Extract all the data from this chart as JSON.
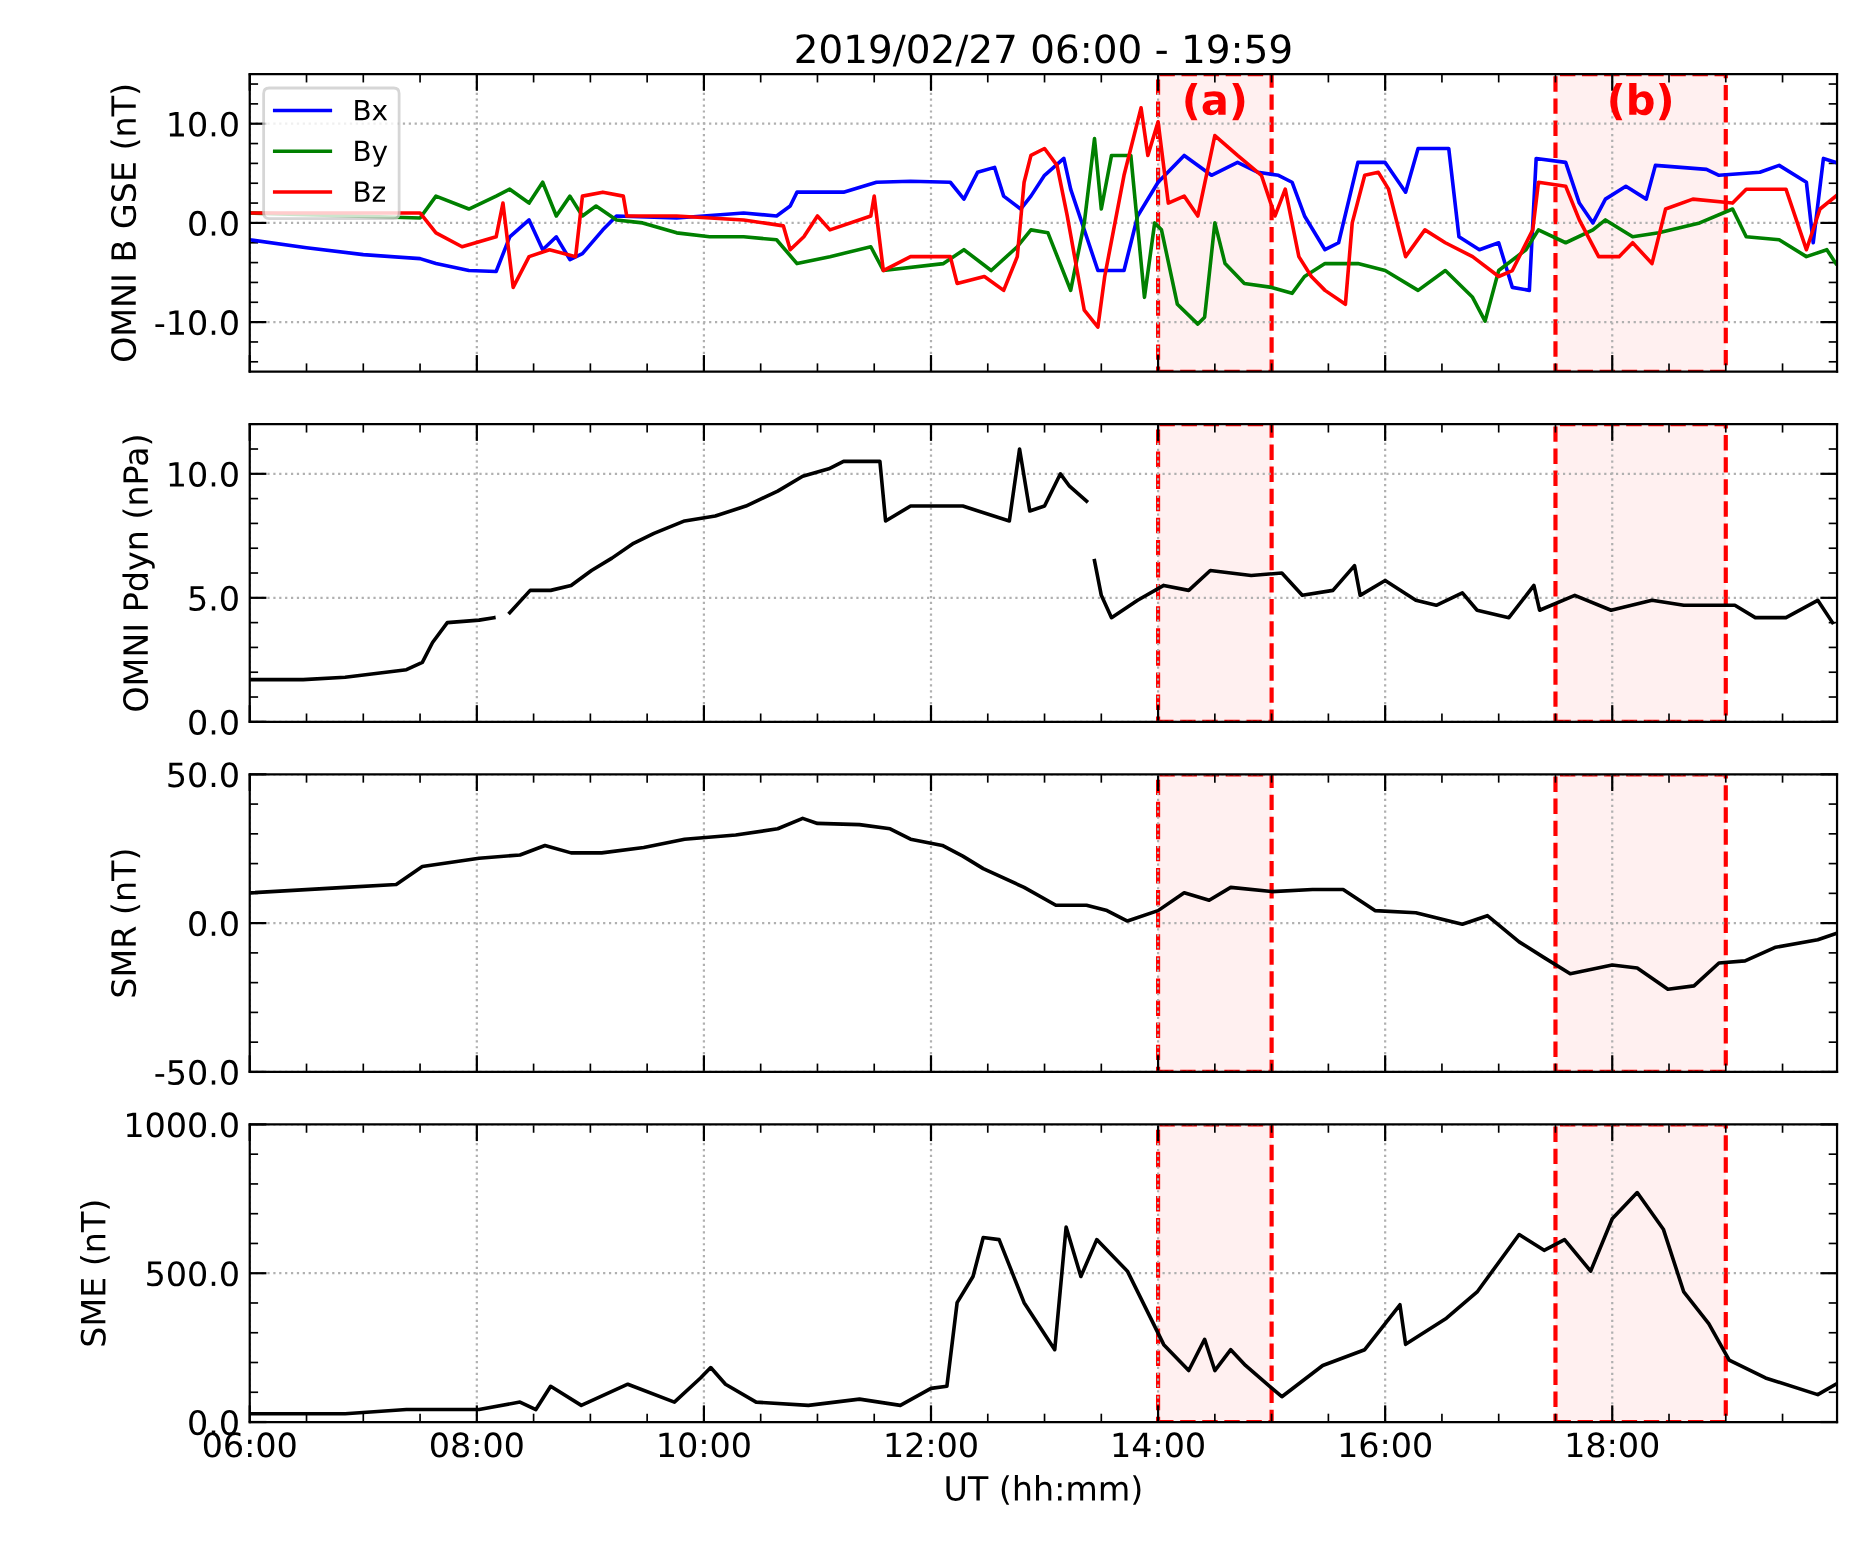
{
  "chart_data": [
    {
      "type": "line",
      "title": "2019/02/27 06:00 - 19:59",
      "ylabel": "OMNI B GSE (nT)",
      "xlim": [
        6,
        19.98
      ],
      "xticks": [
        {
          "value": 6,
          "label": null
        },
        {
          "value": 8,
          "label": null
        },
        {
          "value": 10,
          "label": null
        },
        {
          "value": 12,
          "label": null
        },
        {
          "value": 14,
          "label": null
        },
        {
          "value": 16,
          "label": null
        },
        {
          "value": 18,
          "label": null
        }
      ],
      "ylim": [
        -15,
        15
      ],
      "yticks": [
        {
          "value": -10,
          "label": "-10.0"
        },
        {
          "value": 0,
          "label": "0.0"
        },
        {
          "value": 10,
          "label": "10.0"
        }
      ],
      "tick_labels": "y",
      "grid": true,
      "legend": "top left",
      "marker": "none",
      "line_style": "solid",
      "series": [
        {
          "name": "Bx",
          "color": "#0000ff",
          "x": [
            6.0,
            6.5,
            7.0,
            7.5,
            7.64,
            7.93,
            8.17,
            8.29,
            8.46,
            8.58,
            8.7,
            8.82,
            8.93,
            9.11,
            9.23,
            9.76,
            10.35,
            10.64,
            10.76,
            10.82,
            11.23,
            11.52,
            11.82,
            12.17,
            12.29,
            12.41,
            12.56,
            12.64,
            12.79,
            12.88,
            13.0,
            13.17,
            13.23,
            13.35,
            13.47,
            13.7,
            13.82,
            14.0,
            14.23,
            14.47,
            14.7,
            14.88,
            15.06,
            15.18,
            15.29,
            15.47,
            15.59,
            15.76,
            16.0,
            16.18,
            16.29,
            16.56,
            16.65,
            16.83,
            17.0,
            17.12,
            17.27,
            17.33,
            17.59,
            17.71,
            17.83,
            17.94,
            18.12,
            18.3,
            18.38,
            18.83,
            18.94,
            19.3,
            19.47,
            19.71,
            19.77,
            19.86,
            19.97
          ],
          "values": [
            -1.7,
            -2.5,
            -3.2,
            -3.6,
            -4.1,
            -4.8,
            -4.9,
            -1.4,
            0.3,
            -2.7,
            -1.4,
            -3.7,
            -3.1,
            -0.7,
            0.7,
            0.5,
            1.0,
            0.7,
            1.7,
            3.1,
            3.1,
            4.1,
            4.2,
            4.1,
            2.4,
            5.1,
            5.6,
            2.7,
            1.4,
            2.7,
            4.8,
            6.5,
            3.4,
            -0.7,
            -4.8,
            -4.8,
            0.7,
            4.1,
            6.8,
            4.8,
            6.1,
            5.1,
            4.8,
            4.1,
            0.7,
            -2.7,
            -2.0,
            6.1,
            6.1,
            3.1,
            7.5,
            7.5,
            -1.4,
            -2.7,
            -2.0,
            -6.5,
            -6.8,
            6.5,
            6.1,
            2.0,
            0.0,
            2.4,
            3.7,
            2.4,
            5.8,
            5.4,
            4.8,
            5.1,
            5.8,
            4.1,
            -2.0,
            6.5,
            6.1
          ]
        },
        {
          "name": "By",
          "color": "#008000",
          "x": [
            6.0,
            7.5,
            7.64,
            7.93,
            8.17,
            8.29,
            8.46,
            8.58,
            8.7,
            8.82,
            8.93,
            9.05,
            9.23,
            9.46,
            9.76,
            10.05,
            10.35,
            10.64,
            10.82,
            11.11,
            11.47,
            11.58,
            12.11,
            12.29,
            12.53,
            12.76,
            12.88,
            13.03,
            13.23,
            13.35,
            13.44,
            13.5,
            13.59,
            13.76,
            13.88,
            13.97,
            14.03,
            14.17,
            14.35,
            14.41,
            14.5,
            14.59,
            14.76,
            15.0,
            15.18,
            15.29,
            15.47,
            15.76,
            16.0,
            16.29,
            16.53,
            16.77,
            16.88,
            17.0,
            17.24,
            17.35,
            17.59,
            17.83,
            17.94,
            18.18,
            18.41,
            18.77,
            19.06,
            19.18,
            19.47,
            19.71,
            19.89,
            19.97
          ],
          "values": [
            1.0,
            0.5,
            2.7,
            1.4,
            2.7,
            3.4,
            2.0,
            4.1,
            0.7,
            2.7,
            0.7,
            1.7,
            0.3,
            0.0,
            -1.0,
            -1.4,
            -1.4,
            -1.7,
            -4.1,
            -3.4,
            -2.4,
            -4.8,
            -4.1,
            -2.7,
            -4.8,
            -2.4,
            -0.7,
            -1.0,
            -6.8,
            0.0,
            8.5,
            1.4,
            6.8,
            6.8,
            -7.5,
            0.0,
            -0.7,
            -8.2,
            -10.2,
            -9.5,
            0.0,
            -4.1,
            -6.1,
            -6.5,
            -7.1,
            -5.4,
            -4.1,
            -4.1,
            -4.8,
            -6.8,
            -4.8,
            -7.5,
            -9.9,
            -4.8,
            -2.7,
            -0.7,
            -2.0,
            -0.7,
            0.3,
            -1.4,
            -1.0,
            0.0,
            1.4,
            -1.4,
            -1.7,
            -3.4,
            -2.7,
            -4.1
          ]
        },
        {
          "name": "Bz",
          "color": "#ff0000",
          "x": [
            6.0,
            7.5,
            7.64,
            7.87,
            8.17,
            8.23,
            8.32,
            8.46,
            8.64,
            8.87,
            8.93,
            9.11,
            9.29,
            9.32,
            9.76,
            10.35,
            10.7,
            10.76,
            10.88,
            11.0,
            11.11,
            11.47,
            11.5,
            11.58,
            11.82,
            12.17,
            12.23,
            12.47,
            12.64,
            12.76,
            12.82,
            12.88,
            13.0,
            13.11,
            13.2,
            13.35,
            13.47,
            13.53,
            13.7,
            13.85,
            13.91,
            14.0,
            14.09,
            14.23,
            14.35,
            14.5,
            14.7,
            14.91,
            15.03,
            15.12,
            15.24,
            15.35,
            15.47,
            15.65,
            15.71,
            15.82,
            15.94,
            16.03,
            16.18,
            16.35,
            16.53,
            16.77,
            17.0,
            17.12,
            17.3,
            17.35,
            17.59,
            17.71,
            17.88,
            18.06,
            18.18,
            18.35,
            18.47,
            18.71,
            19.06,
            19.18,
            19.53,
            19.71,
            19.83,
            19.97
          ],
          "values": [
            1.0,
            1.0,
            -1.0,
            -2.4,
            -1.4,
            2.0,
            -6.5,
            -3.4,
            -2.7,
            -3.4,
            2.7,
            3.1,
            2.7,
            0.7,
            0.7,
            0.3,
            -0.3,
            -2.7,
            -1.4,
            0.7,
            -0.7,
            0.7,
            2.7,
            -4.8,
            -3.4,
            -3.4,
            -6.1,
            -5.4,
            -6.8,
            -3.4,
            4.1,
            6.8,
            7.5,
            5.8,
            0.7,
            -8.8,
            -10.5,
            -5.4,
            4.8,
            11.6,
            6.8,
            10.2,
            2.0,
            2.7,
            0.7,
            8.8,
            6.8,
            4.8,
            0.7,
            3.4,
            -3.4,
            -5.4,
            -6.8,
            -8.2,
            0.0,
            4.8,
            5.1,
            3.4,
            -3.4,
            -0.7,
            -2.0,
            -3.4,
            -5.4,
            -4.8,
            -0.7,
            4.1,
            3.7,
            0.3,
            -3.4,
            -3.4,
            -2.0,
            -4.1,
            1.4,
            2.4,
            2.0,
            3.4,
            3.4,
            -2.7,
            1.4,
            2.7
          ]
        }
      ],
      "bands": [
        {
          "axis": "x",
          "from": 14,
          "to": 15,
          "label": "(a)",
          "color": "#ff0000"
        },
        {
          "axis": "x",
          "from": 17.5,
          "to": 19,
          "label": "(b)",
          "color": "#ff0000"
        }
      ]
    },
    {
      "type": "line",
      "ylabel": "OMNI Pdyn (nPa)",
      "xlim": [
        6,
        19.98
      ],
      "xticks": [
        {
          "value": 6,
          "label": null
        },
        {
          "value": 8,
          "label": null
        },
        {
          "value": 10,
          "label": null
        },
        {
          "value": 12,
          "label": null
        },
        {
          "value": 14,
          "label": null
        },
        {
          "value": 16,
          "label": null
        },
        {
          "value": 18,
          "label": null
        }
      ],
      "ylim": [
        0,
        12
      ],
      "yticks": [
        {
          "value": 0,
          "label": "0.0"
        },
        {
          "value": 5,
          "label": "5.0"
        },
        {
          "value": 10,
          "label": "10.0"
        }
      ],
      "tick_labels": "y",
      "grid": true,
      "marker": "none",
      "line_style": "solid",
      "series": [
        {
          "color": "#000000",
          "x": [
            6.02,
            6.47,
            6.84,
            7.38,
            7.52,
            7.61,
            7.74,
            8.02,
            8.15,
            8.22,
            8.29,
            8.47,
            8.65,
            8.83,
            9.01,
            9.19,
            9.38,
            9.56,
            9.83,
            10.1,
            10.37,
            10.65,
            10.87,
            11.1,
            11.23,
            11.55,
            11.6,
            11.82,
            12.28,
            12.69,
            12.78,
            12.87,
            13.0,
            13.14,
            13.22,
            13.37,
            13.4,
            13.44,
            13.5,
            13.59,
            13.82,
            14.05,
            14.27,
            14.46,
            14.82,
            15.09,
            15.27,
            15.54,
            15.73,
            15.78,
            16.0,
            16.27,
            16.45,
            16.68,
            16.81,
            17.09,
            17.31,
            17.36,
            17.67,
            17.99,
            18.35,
            18.63,
            19.08,
            19.26,
            19.53,
            19.81,
            19.94
          ],
          "values": [
            1.7,
            1.7,
            1.8,
            2.1,
            2.4,
            3.2,
            4.0,
            4.1,
            4.2,
            null,
            4.4,
            5.3,
            5.3,
            5.5,
            6.1,
            6.6,
            7.2,
            7.6,
            8.1,
            8.3,
            8.7,
            9.3,
            9.9,
            10.2,
            10.5,
            10.5,
            8.1,
            8.7,
            8.7,
            8.1,
            11.0,
            8.5,
            8.7,
            10.0,
            9.5,
            8.9,
            null,
            6.5,
            5.1,
            4.2,
            4.9,
            5.5,
            5.3,
            6.1,
            5.9,
            6.0,
            5.1,
            5.3,
            6.3,
            5.1,
            5.7,
            4.9,
            4.7,
            5.2,
            4.5,
            4.2,
            5.5,
            4.5,
            5.1,
            4.5,
            4.9,
            4.7,
            4.7,
            4.2,
            4.2,
            4.9,
            4.0
          ]
        }
      ],
      "bands": [
        {
          "axis": "x",
          "from": 14,
          "to": 15,
          "color": "#ff0000"
        },
        {
          "axis": "x",
          "from": 17.5,
          "to": 19,
          "color": "#ff0000"
        }
      ]
    },
    {
      "type": "line",
      "ylabel": "SMR (nT)",
      "xlim": [
        6,
        19.98
      ],
      "xticks": [
        {
          "value": 6,
          "label": null
        },
        {
          "value": 8,
          "label": null
        },
        {
          "value": 10,
          "label": null
        },
        {
          "value": 12,
          "label": null
        },
        {
          "value": 14,
          "label": null
        },
        {
          "value": 16,
          "label": null
        },
        {
          "value": 18,
          "label": null
        }
      ],
      "ylim": [
        -50,
        50
      ],
      "yticks": [
        {
          "value": -50,
          "label": "-50.0"
        },
        {
          "value": 0,
          "label": "0.0"
        },
        {
          "value": 50,
          "label": "50.0"
        }
      ],
      "tick_labels": "y",
      "grid": true,
      "marker": "none",
      "line_style": "solid",
      "series": [
        {
          "color": "#000000",
          "x": [
            6.02,
            6.84,
            7.29,
            7.52,
            8.02,
            8.38,
            8.6,
            8.83,
            9.1,
            9.47,
            9.83,
            10.28,
            10.65,
            10.87,
            11.0,
            11.37,
            11.64,
            11.82,
            12.1,
            12.28,
            12.46,
            12.82,
            13.1,
            13.37,
            13.55,
            13.73,
            14.0,
            14.23,
            14.45,
            14.64,
            15.0,
            15.36,
            15.63,
            15.91,
            16.27,
            16.68,
            16.9,
            17.18,
            17.4,
            17.63,
            18.0,
            18.22,
            18.49,
            18.72,
            18.94,
            19.17,
            19.44,
            19.81,
            19.97
          ],
          "values": [
            10.2,
            12.0,
            13.0,
            19.0,
            21.8,
            22.9,
            26.1,
            23.6,
            23.6,
            25.4,
            28.2,
            29.6,
            31.7,
            35.2,
            33.5,
            33.1,
            31.7,
            28.2,
            26.1,
            22.5,
            18.3,
            12.0,
            6.0,
            6.0,
            4.2,
            0.7,
            4.2,
            10.2,
            7.7,
            12.0,
            10.6,
            11.3,
            11.3,
            4.2,
            3.5,
            -0.4,
            2.5,
            -6.3,
            -11.6,
            -17.0,
            -14.1,
            -15.1,
            -22.2,
            -21.1,
            -13.4,
            -12.7,
            -8.1,
            -5.6,
            -3.5
          ]
        }
      ],
      "bands": [
        {
          "axis": "x",
          "from": 14,
          "to": 15,
          "color": "#ff0000"
        },
        {
          "axis": "x",
          "from": 17.5,
          "to": 19,
          "color": "#ff0000"
        }
      ]
    },
    {
      "type": "line",
      "ylabel": "SME (nT)",
      "xlabel": "UT (hh:mm)",
      "xlim": [
        6,
        19.98
      ],
      "xticks": [
        {
          "value": 6,
          "label": "06:00"
        },
        {
          "value": 8,
          "label": "08:00"
        },
        {
          "value": 10,
          "label": "10:00"
        },
        {
          "value": 12,
          "label": "12:00"
        },
        {
          "value": 14,
          "label": "14:00"
        },
        {
          "value": 16,
          "label": "16:00"
        },
        {
          "value": 18,
          "label": "18:00"
        }
      ],
      "ylim": [
        0,
        1000
      ],
      "yticks": [
        {
          "value": 0,
          "label": "0.0"
        },
        {
          "value": 500,
          "label": "500.0"
        },
        {
          "value": 1000,
          "label": "1000.0"
        }
      ],
      "grid": true,
      "marker": "none",
      "line_style": "solid",
      "series": [
        {
          "color": "#000000",
          "x": [
            6.02,
            6.84,
            7.38,
            8.02,
            8.38,
            8.52,
            8.65,
            8.92,
            9.33,
            9.74,
            9.97,
            10.06,
            10.19,
            10.46,
            10.92,
            11.37,
            11.73,
            12.0,
            12.14,
            12.23,
            12.37,
            12.46,
            12.6,
            12.82,
            13.09,
            13.19,
            13.32,
            13.46,
            13.73,
            14.05,
            14.27,
            14.41,
            14.5,
            14.64,
            14.77,
            15.09,
            15.45,
            15.82,
            16.13,
            16.18,
            16.54,
            16.81,
            17.18,
            17.4,
            17.58,
            17.81,
            18.0,
            18.22,
            18.45,
            18.63,
            18.85,
            19.03,
            19.35,
            19.81,
            19.97
          ],
          "values": [
            28,
            28,
            42,
            42,
            67,
            42,
            120,
            56,
            127,
            67,
            148,
            183,
            127,
            67,
            56,
            77,
            56,
            113,
            120,
            401,
            489,
            620,
            613,
            401,
            243,
            655,
            489,
            613,
            507,
            260,
            173,
            278,
            173,
            243,
            190,
            85,
            190,
            243,
            394,
            261,
            349,
            437,
            630,
            577,
            613,
            507,
            683,
            771,
            648,
            437,
            331,
            208,
            148,
            92,
            127
          ]
        }
      ],
      "bands": [
        {
          "axis": "x",
          "from": 14,
          "to": 15,
          "color": "#ff0000"
        },
        {
          "axis": "x",
          "from": 17.5,
          "to": 19,
          "color": "#ff0000"
        }
      ]
    }
  ]
}
